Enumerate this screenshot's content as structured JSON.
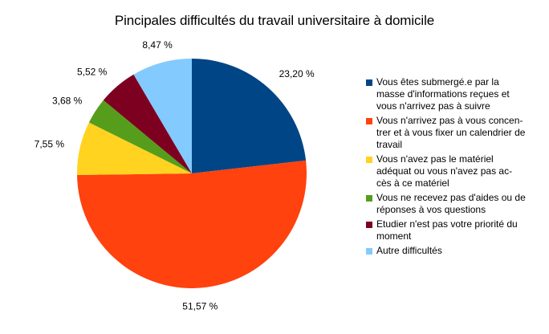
{
  "chart_data": {
    "type": "pie",
    "title": "Pincipales difficultés du travail universitaire à domicile",
    "legend_position": "right",
    "slices": [
      {
        "label": "Vous êtes submergé.e par la\nmasse d'informations reçues et\nvous n'arrivez pas à suivre",
        "value": 23.2,
        "value_label": "23,20 %",
        "color": "#004586"
      },
      {
        "label": "Vous n'arrivez pas à vous concen-\ntrer et à vous fixer un calendrier de\ntravail",
        "value": 51.57,
        "value_label": "51,57 %",
        "color": "#ff420e"
      },
      {
        "label": "Vous n'avez pas le matériel\nadéquat ou vous n'avez pas ac-\ncès à ce matériel",
        "value": 7.55,
        "value_label": "7,55 %",
        "color": "#ffd320"
      },
      {
        "label": "Vous ne recevez pas d'aides ou de\nréponses à vos questions",
        "value": 3.68,
        "value_label": "3,68 %",
        "color": "#579d1c"
      },
      {
        "label": "Etudier n'est pas votre priorité du\nmoment",
        "value": 5.52,
        "value_label": "5,52 %",
        "color": "#7e0021"
      },
      {
        "label": "Autre difficultés",
        "value": 8.47,
        "value_label": "8,47 %",
        "color": "#83caff"
      }
    ]
  }
}
